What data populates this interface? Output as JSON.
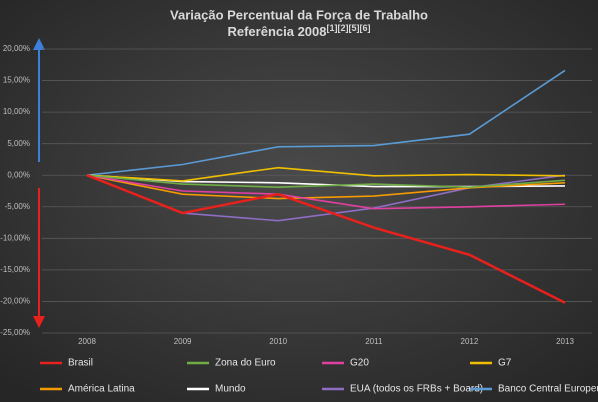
{
  "chart_data": {
    "type": "line",
    "title": "Variação Percentual da Força de Trabalho",
    "subtitle": "Referência 2008",
    "subtitle_refs": "[1][2][5][6]",
    "categories": [
      "2008",
      "2009",
      "2010",
      "2011",
      "2012",
      "2013"
    ],
    "ylim": [
      -25,
      20
    ],
    "yticks": [
      {
        "value": -25,
        "label": "-25,00%"
      },
      {
        "value": -20,
        "label": "-20,00%"
      },
      {
        "value": -15,
        "label": "-15,00%"
      },
      {
        "value": -10,
        "label": "-10,00%"
      },
      {
        "value": -5,
        "label": "-5,00%"
      },
      {
        "value": 0,
        "label": "0,00%"
      },
      {
        "value": 5,
        "label": "5,00%"
      },
      {
        "value": 10,
        "label": "10,00%"
      },
      {
        "value": 15,
        "label": "15,00%"
      },
      {
        "value": 20,
        "label": "20,00%"
      }
    ],
    "grid": true,
    "series": [
      {
        "name": "Brasil",
        "color": "#e8211c",
        "values": [
          0,
          -6.0,
          -3.0,
          -8.3,
          -12.6,
          -20.2
        ]
      },
      {
        "name": "Zona do Euro",
        "color": "#70ad47",
        "values": [
          0,
          -1.4,
          -1.9,
          -1.4,
          -1.9,
          -0.8
        ]
      },
      {
        "name": "G20",
        "color": "#e040a0",
        "values": [
          0,
          -2.5,
          -3.0,
          -5.3,
          -5.0,
          -4.6
        ]
      },
      {
        "name": "G7",
        "color": "#f0c000",
        "values": [
          0,
          -0.9,
          1.2,
          -0.1,
          0.1,
          -0.1
        ]
      },
      {
        "name": "América Latina",
        "color": "#f59a00",
        "values": [
          0,
          -3.0,
          -3.7,
          -3.3,
          -2.0,
          -1.2
        ]
      },
      {
        "name": "Mundo",
        "color": "#ffffff",
        "values": [
          0,
          -1.0,
          -1.2,
          -1.8,
          -1.8,
          -1.7
        ]
      },
      {
        "name": "EUA (todos os FRBs + Board)",
        "color": "#8e6dc4",
        "values": [
          0,
          -6.0,
          -7.2,
          -5.2,
          -2.0,
          0
        ]
      },
      {
        "name": "Banco Central Europeu",
        "color": "#5b9bd5",
        "values": [
          0,
          1.7,
          4.5,
          4.7,
          6.5,
          16.6
        ]
      }
    ]
  }
}
